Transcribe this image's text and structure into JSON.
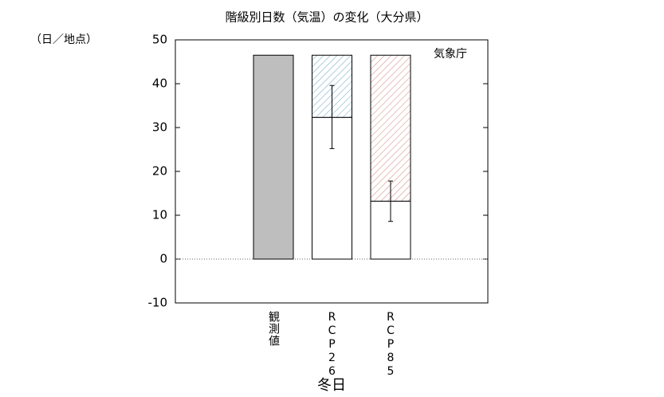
{
  "chart_data": {
    "type": "bar",
    "title": "階級別日数（気温）の変化（大分県）",
    "y_unit": "（日／地点）",
    "annotation": "気象庁",
    "x_label": "冬日",
    "categories": [
      "観測値",
      "RCP26",
      "RCP85"
    ],
    "values": [
      46.5,
      32.3,
      13.2
    ],
    "error_low": [
      null,
      25.2,
      8.6
    ],
    "error_high": [
      null,
      39.6,
      17.8
    ],
    "colors": [
      "#bebebe",
      "#ffffff",
      "#ffffff"
    ],
    "hatch_colors": [
      null,
      "#6fa8c8",
      "#d08070"
    ],
    "ylim": [
      -10,
      50
    ],
    "yticks": [
      -10,
      0,
      10,
      20,
      30,
      40,
      50
    ]
  }
}
